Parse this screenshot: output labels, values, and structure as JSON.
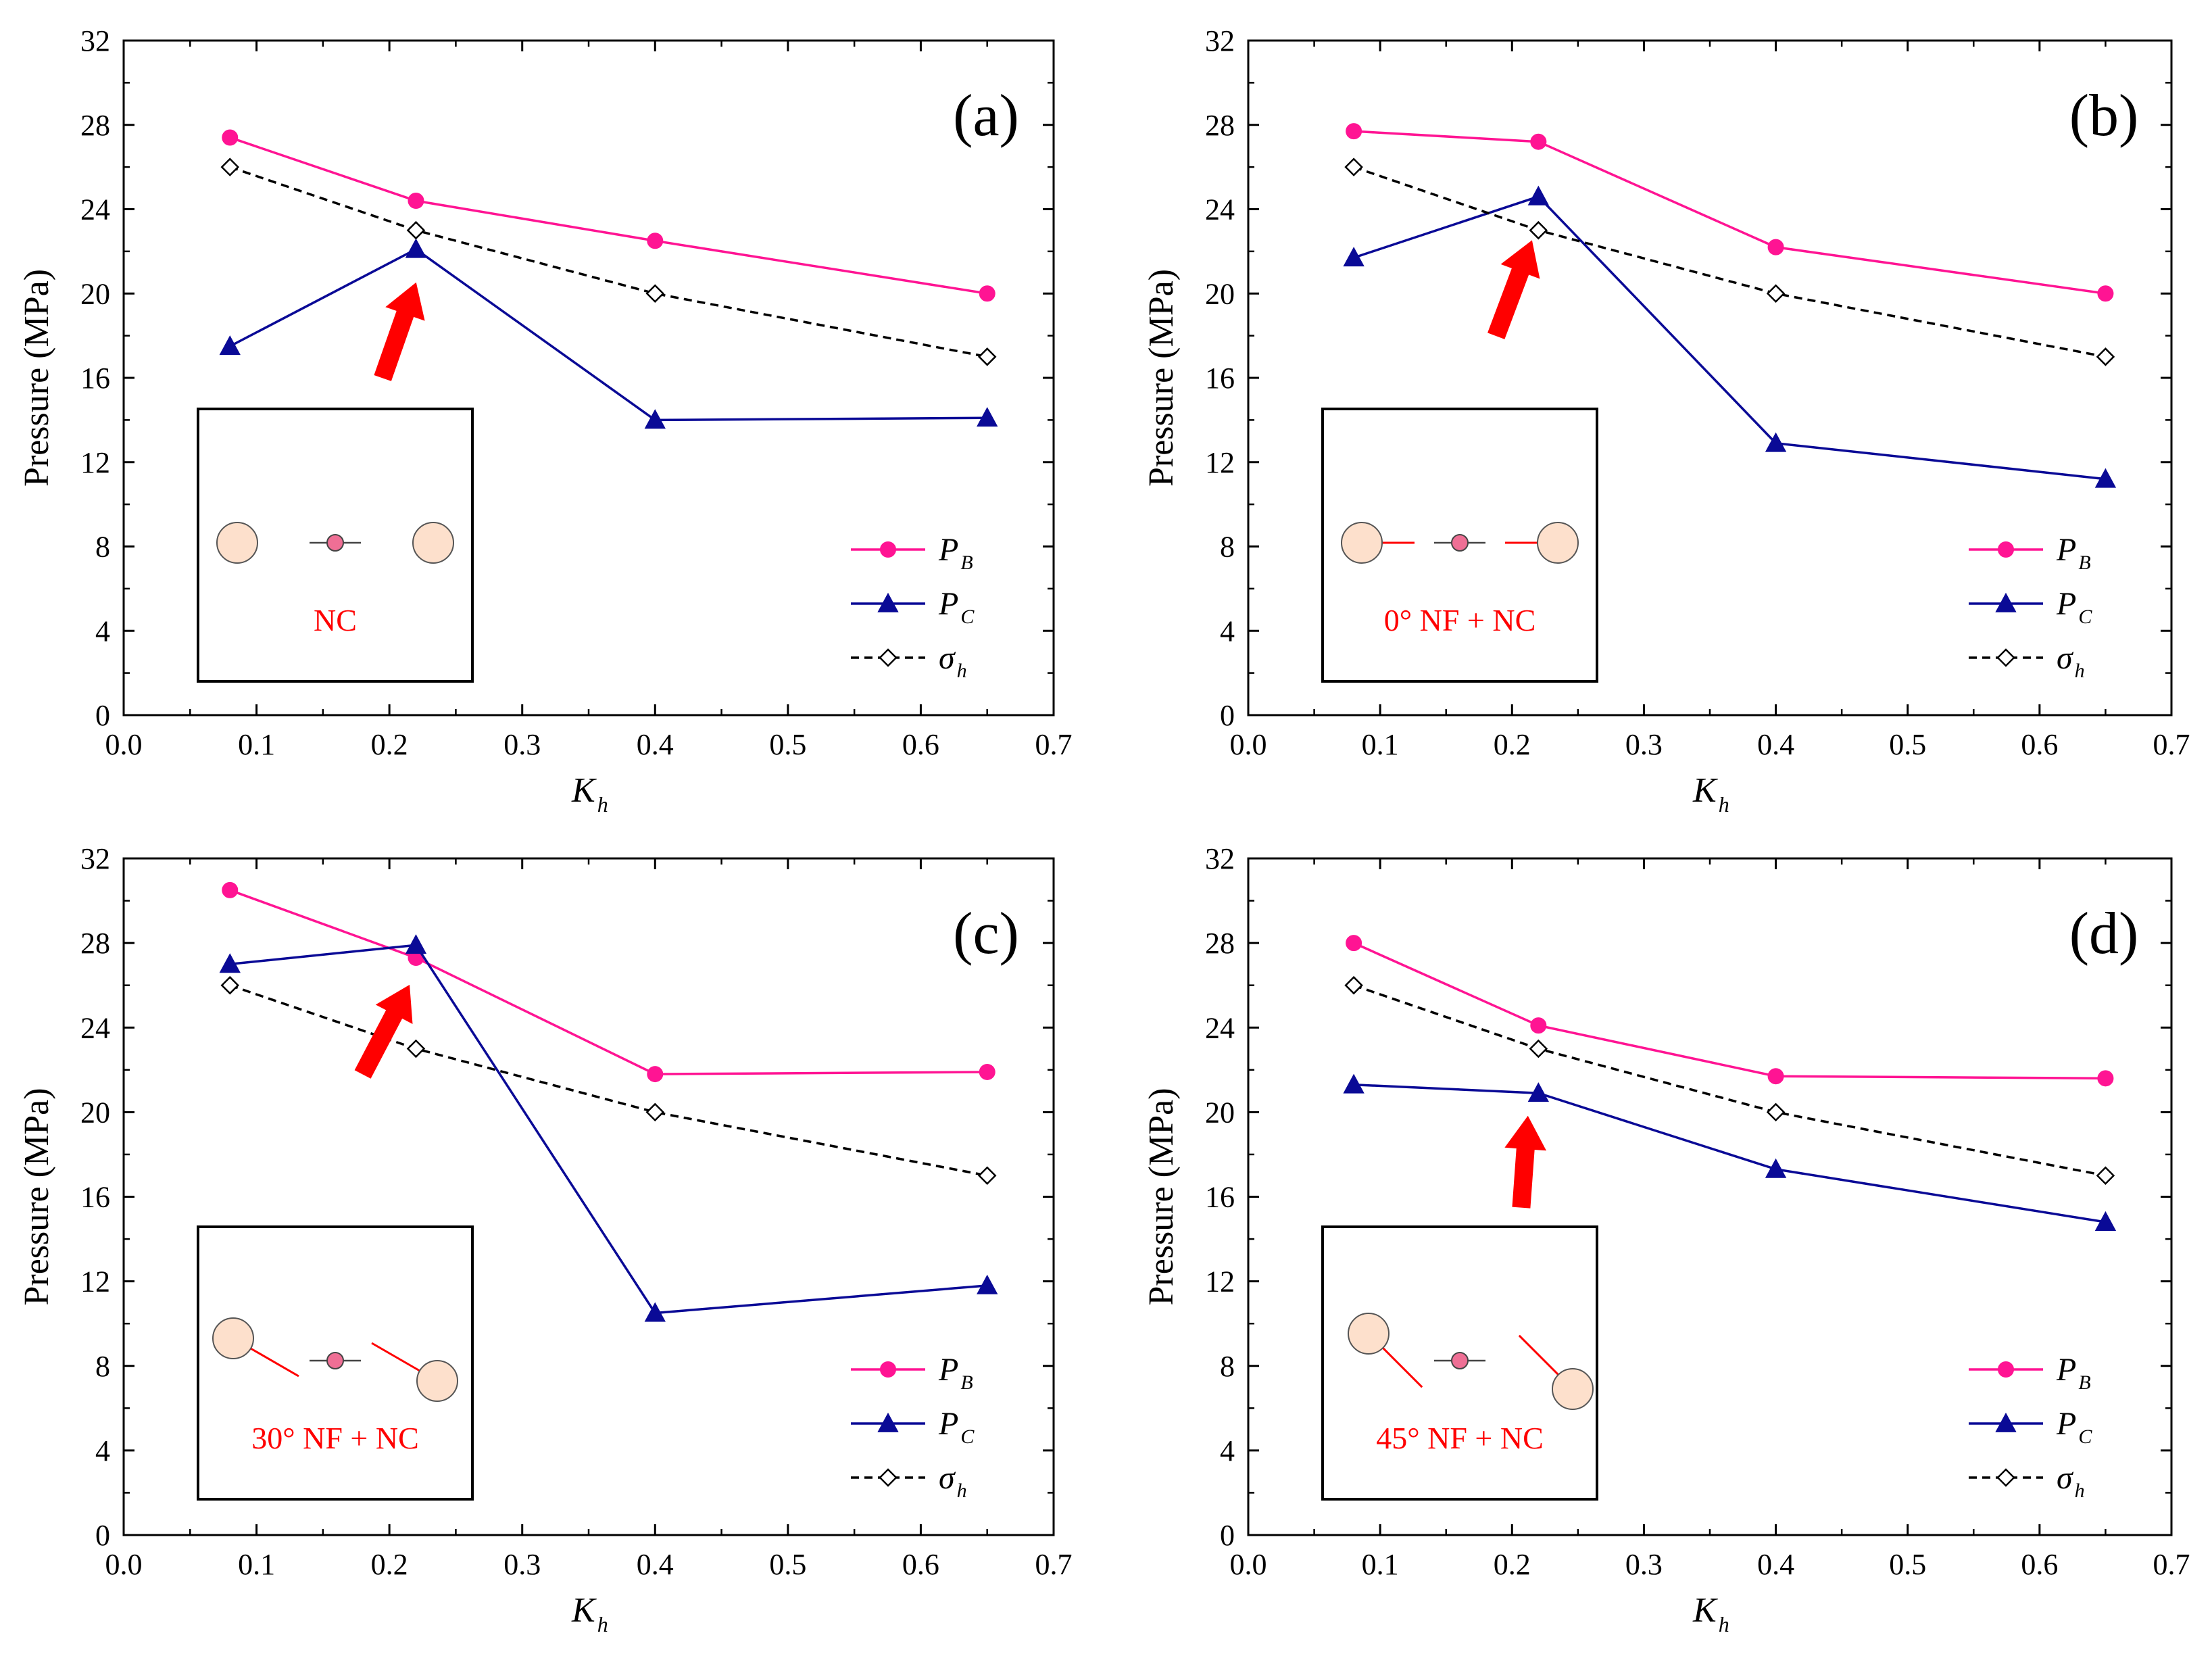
{
  "colors": {
    "pb": "#ff1493",
    "pc": "#0a0a96",
    "sigma": "#000000",
    "arrow": "#ff0000",
    "inset_label": "#ff0000",
    "wellbore_fill": "#fde0cc",
    "center_fill": "#ef6f95"
  },
  "chart_data": [
    {
      "type": "line",
      "panel_label": "(a)",
      "xlabel": "K",
      "xlabel_sub": "h",
      "ylabel": "Pressure (MPa)",
      "xlim": [
        0.0,
        0.7
      ],
      "ylim": [
        0,
        32
      ],
      "xticks": [
        "0.0",
        "0.1",
        "0.2",
        "0.3",
        "0.4",
        "0.5",
        "0.6",
        "0.7"
      ],
      "yticks": [
        "0",
        "4",
        "8",
        "12",
        "16",
        "20",
        "24",
        "28",
        "32"
      ],
      "x": [
        0.08,
        0.22,
        0.4,
        0.65
      ],
      "series": [
        {
          "name": "P",
          "sub": "B",
          "values": [
            27.4,
            24.4,
            22.5,
            20.0
          ],
          "style": "solid",
          "marker": "circle",
          "color_key": "pb"
        },
        {
          "name": "P",
          "sub": "C",
          "values": [
            17.5,
            22.1,
            14.0,
            14.1
          ],
          "style": "solid",
          "marker": "triangle",
          "color_key": "pc"
        },
        {
          "name": "σ",
          "sub": "h",
          "values": [
            26,
            23,
            20,
            17
          ],
          "style": "dashed",
          "marker": "diamond",
          "color_key": "sigma"
        }
      ],
      "arrow_target": [
        0.22,
        20.5
      ],
      "arrow_tail": [
        0.195,
        16.0
      ],
      "inset": {
        "label": "NC",
        "nf_angle": null
      },
      "legend_loc": "bottom-right"
    },
    {
      "type": "line",
      "panel_label": "(b)",
      "xlabel": "K",
      "xlabel_sub": "h",
      "ylabel": "Pressure (MPa)",
      "xlim": [
        0.0,
        0.7
      ],
      "ylim": [
        0,
        32
      ],
      "xticks": [
        "0.0",
        "0.1",
        "0.2",
        "0.3",
        "0.4",
        "0.5",
        "0.6",
        "0.7"
      ],
      "yticks": [
        "0",
        "4",
        "8",
        "12",
        "16",
        "20",
        "24",
        "28",
        "32"
      ],
      "x": [
        0.08,
        0.22,
        0.4,
        0.65
      ],
      "series": [
        {
          "name": "P",
          "sub": "B",
          "values": [
            27.7,
            27.2,
            22.2,
            20.0
          ],
          "style": "solid",
          "marker": "circle",
          "color_key": "pb"
        },
        {
          "name": "P",
          "sub": "C",
          "values": [
            21.7,
            24.6,
            12.9,
            11.2
          ],
          "style": "solid",
          "marker": "triangle",
          "color_key": "pc"
        },
        {
          "name": "σ",
          "sub": "h",
          "values": [
            26,
            23,
            20,
            17
          ],
          "style": "dashed",
          "marker": "diamond",
          "color_key": "sigma"
        }
      ],
      "arrow_target": [
        0.215,
        22.5
      ],
      "arrow_tail": [
        0.188,
        18.0
      ],
      "inset": {
        "label": "0° NF + NC",
        "nf_angle": 0
      },
      "legend_loc": "bottom-right"
    },
    {
      "type": "line",
      "panel_label": "(c)",
      "xlabel": "K",
      "xlabel_sub": "h",
      "ylabel": "Pressure (MPa)",
      "xlim": [
        0.0,
        0.7
      ],
      "ylim": [
        0,
        32
      ],
      "xticks": [
        "0.0",
        "0.1",
        "0.2",
        "0.3",
        "0.4",
        "0.5",
        "0.6",
        "0.7"
      ],
      "yticks": [
        "0",
        "4",
        "8",
        "12",
        "16",
        "20",
        "24",
        "28",
        "32"
      ],
      "x": [
        0.08,
        0.22,
        0.4,
        0.65
      ],
      "series": [
        {
          "name": "P",
          "sub": "B",
          "values": [
            30.5,
            27.3,
            21.8,
            21.9
          ],
          "style": "solid",
          "marker": "circle",
          "color_key": "pb"
        },
        {
          "name": "P",
          "sub": "C",
          "values": [
            27.0,
            27.9,
            10.5,
            11.8
          ],
          "style": "solid",
          "marker": "triangle",
          "color_key": "pc"
        },
        {
          "name": "σ",
          "sub": "h",
          "values": [
            26,
            23,
            20,
            17
          ],
          "style": "dashed",
          "marker": "diamond",
          "color_key": "sigma"
        }
      ],
      "arrow_target": [
        0.215,
        26.0
      ],
      "arrow_tail": [
        0.18,
        21.8
      ],
      "inset": {
        "label": "30° NF + NC",
        "nf_angle": 30
      },
      "legend_loc": "bottom-right"
    },
    {
      "type": "line",
      "panel_label": "(d)",
      "xlabel": "K",
      "xlabel_sub": "h",
      "ylabel": "Pressure (MPa)",
      "xlim": [
        0.0,
        0.7
      ],
      "ylim": [
        0,
        32
      ],
      "xticks": [
        "0.0",
        "0.1",
        "0.2",
        "0.3",
        "0.4",
        "0.5",
        "0.6",
        "0.7"
      ],
      "yticks": [
        "0",
        "4",
        "8",
        "12",
        "16",
        "20",
        "24",
        "28",
        "32"
      ],
      "x": [
        0.08,
        0.22,
        0.4,
        0.65
      ],
      "series": [
        {
          "name": "P",
          "sub": "B",
          "values": [
            28.0,
            24.1,
            21.7,
            21.6
          ],
          "style": "solid",
          "marker": "circle",
          "color_key": "pb"
        },
        {
          "name": "P",
          "sub": "C",
          "values": [
            21.3,
            20.9,
            17.3,
            14.8
          ],
          "style": "solid",
          "marker": "triangle",
          "color_key": "pc"
        },
        {
          "name": "σ",
          "sub": "h",
          "values": [
            26,
            23,
            20,
            17
          ],
          "style": "dashed",
          "marker": "diamond",
          "color_key": "sigma"
        }
      ],
      "arrow_target": [
        0.212,
        19.8
      ],
      "arrow_tail": [
        0.207,
        15.5
      ],
      "inset": {
        "label": "45° NF + NC",
        "nf_angle": 45
      },
      "legend_loc": "bottom-right"
    }
  ]
}
